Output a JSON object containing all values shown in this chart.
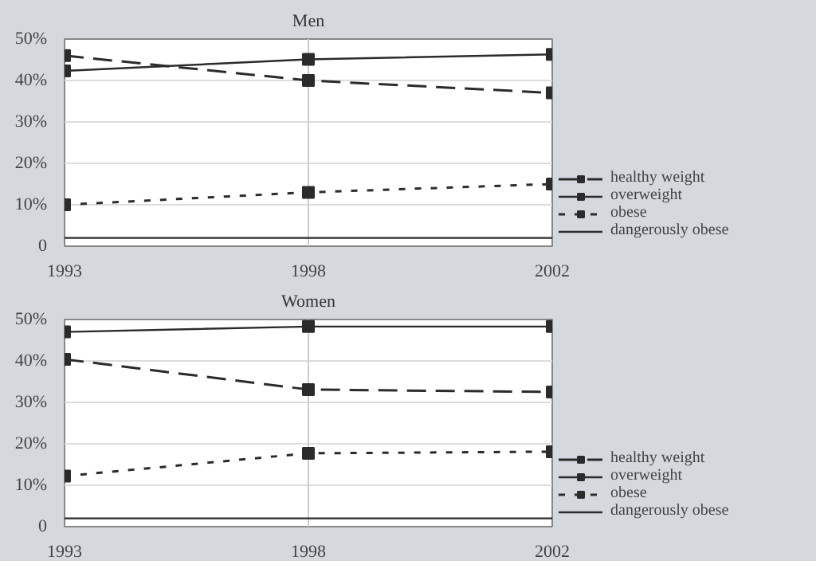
{
  "chart_data": [
    {
      "type": "line",
      "title": "Men",
      "categories": [
        "1993",
        "1998",
        "2002"
      ],
      "ylim": [
        0,
        50
      ],
      "yticks": [
        {
          "value": 0,
          "label": "0"
        },
        {
          "value": 10,
          "label": "10%"
        },
        {
          "value": 20,
          "label": "20%"
        },
        {
          "value": 30,
          "label": "30%"
        },
        {
          "value": 40,
          "label": "40%"
        },
        {
          "value": 50,
          "label": "50%"
        }
      ],
      "grid": "y",
      "legend": "bottom right",
      "ref_lines": [
        {
          "axis": "x",
          "value": "1998",
          "color": "#cccccc"
        }
      ],
      "series": [
        {
          "name": "healthy weight",
          "color": "#2b2b2b",
          "values": [
            46,
            40,
            37
          ],
          "marker": "square",
          "line_style": "dashed"
        },
        {
          "name": "overweight",
          "color": "#2b2b2b",
          "values": [
            42.3,
            45.1,
            46.3
          ],
          "marker": "square",
          "line_style": "solid"
        },
        {
          "name": "obese",
          "color": "#2b2b2b",
          "values": [
            10,
            13,
            15
          ],
          "marker": "square",
          "line_style": "dotted"
        },
        {
          "name": "dangerously obese",
          "color": "#2b2b2b",
          "values": [
            2,
            2,
            2
          ],
          "marker": "none",
          "line_style": "solid"
        }
      ]
    },
    {
      "type": "line",
      "title": "Women",
      "categories": [
        "1993",
        "1998",
        "2002"
      ],
      "ylim": [
        0,
        50
      ],
      "yticks": [
        {
          "value": 0,
          "label": "0"
        },
        {
          "value": 10,
          "label": "10%"
        },
        {
          "value": 20,
          "label": "20%"
        },
        {
          "value": 30,
          "label": "30%"
        },
        {
          "value": 40,
          "label": "40%"
        },
        {
          "value": 50,
          "label": "50%"
        }
      ],
      "grid": "y",
      "legend": "bottom right",
      "ref_lines": [
        {
          "axis": "x",
          "value": "1998",
          "color": "#cccccc"
        }
      ],
      "series": [
        {
          "name": "healthy weight",
          "color": "#2b2b2b",
          "values": [
            40.4,
            33.1,
            32.5
          ],
          "marker": "square",
          "line_style": "dashed"
        },
        {
          "name": "overweight",
          "color": "#2b2b2b",
          "values": [
            47,
            48.3,
            48.3
          ],
          "marker": "square",
          "line_style": "solid"
        },
        {
          "name": "obese",
          "color": "#2b2b2b",
          "values": [
            12.2,
            17.7,
            18.1
          ],
          "marker": "square",
          "line_style": "dotted"
        },
        {
          "name": "dangerously obese",
          "color": "#2b2b2b",
          "values": [
            2,
            2,
            2
          ],
          "marker": "none",
          "line_style": "solid"
        }
      ]
    }
  ]
}
